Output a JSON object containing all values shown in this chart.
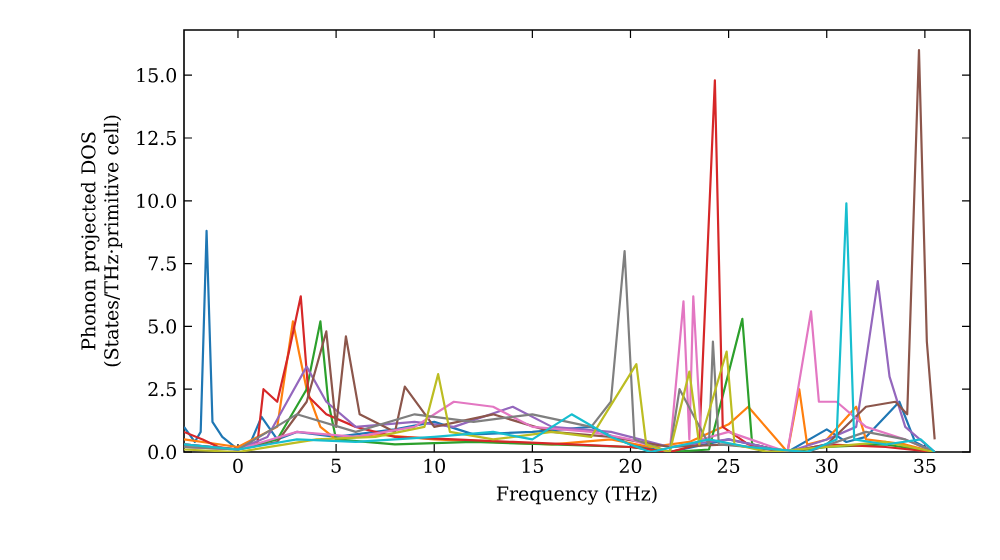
{
  "chart_data": {
    "type": "line",
    "xlabel": "Frequency (THz)",
    "ylabel": "Phonon projected DOS (States/THz·primitive cell)",
    "xlim": [
      -2.75,
      37.3
    ],
    "ylim": [
      0,
      16.8
    ],
    "xticks": [
      0,
      5,
      10,
      15,
      20,
      25,
      30,
      35
    ],
    "yticks": [
      {
        "value": 0,
        "label": "0.0"
      },
      {
        "value": 2.5,
        "label": "2.5"
      },
      {
        "value": 5,
        "label": "5.0"
      },
      {
        "value": 7.5,
        "label": "7.5"
      },
      {
        "value": 10,
        "label": "10.0"
      },
      {
        "value": 12.5,
        "label": "12.5"
      },
      {
        "value": 15,
        "label": "15.0"
      }
    ],
    "grid": false,
    "marker": "none",
    "line_style": "solid",
    "series": [
      {
        "color": "#1f77b4",
        "x": [
          -2.75,
          -2.2,
          -1.9,
          -1.6,
          -1.3,
          -0.8,
          0,
          0.6,
          1.2,
          2,
          3,
          5,
          8,
          10,
          12,
          15,
          18,
          20,
          22,
          25,
          28,
          30,
          31,
          32,
          33.7,
          34.5,
          35.5
        ],
        "values": [
          1.0,
          0.4,
          0.8,
          8.8,
          1.2,
          0.6,
          0.1,
          0.3,
          1.4,
          0.5,
          0.8,
          0.6,
          0.9,
          1.2,
          0.7,
          0.8,
          1.0,
          0.3,
          0.0,
          0.5,
          0.0,
          0.9,
          0.4,
          0.6,
          2.0,
          0.4,
          0.0
        ]
      },
      {
        "color": "#ff7f0e",
        "x": [
          -2.75,
          0,
          2,
          2.8,
          3.1,
          3.5,
          4.2,
          5,
          7,
          10,
          13,
          16,
          19,
          21,
          23,
          25,
          26,
          28,
          28.6,
          29,
          30,
          31.5,
          32,
          34,
          35.5
        ],
        "values": [
          0.5,
          0.2,
          1.0,
          5.2,
          4.0,
          2.5,
          1.0,
          0.5,
          0.7,
          0.5,
          0.4,
          0.3,
          0.5,
          0.2,
          0.4,
          1.1,
          1.8,
          0.0,
          2.5,
          0.3,
          0.5,
          1.8,
          0.5,
          0.3,
          0.0
        ]
      },
      {
        "color": "#2ca02c",
        "x": [
          -2.75,
          0,
          2,
          3.5,
          4.2,
          4.6,
          5,
          8,
          12,
          16,
          20,
          22,
          24,
          25.7,
          26.2,
          28,
          30,
          33,
          35.5
        ],
        "values": [
          0.2,
          0.1,
          0.5,
          2.5,
          5.2,
          2.0,
          0.5,
          0.3,
          0.4,
          0.3,
          0.2,
          0.0,
          0.1,
          5.3,
          0.3,
          0.0,
          0.2,
          0.3,
          0.0
        ]
      },
      {
        "color": "#d62728",
        "x": [
          -2.75,
          -1.8,
          -1,
          0,
          1,
          1.3,
          2,
          2.6,
          3.2,
          3.6,
          4.5,
          6,
          8,
          11,
          14,
          17,
          20,
          22,
          23.5,
          24.3,
          24.7,
          26,
          28,
          30,
          33,
          35.5
        ],
        "values": [
          0.8,
          0.5,
          0.2,
          0.1,
          0.4,
          2.5,
          2.0,
          4.0,
          6.2,
          2.2,
          1.5,
          1.0,
          0.6,
          0.5,
          0.4,
          0.3,
          0.2,
          0.0,
          0.3,
          14.8,
          1.0,
          0.3,
          0.0,
          0.3,
          0.2,
          0.0
        ]
      },
      {
        "color": "#9467bd",
        "x": [
          -2.75,
          0,
          1.5,
          2.5,
          3.5,
          4.5,
          6,
          9,
          11,
          14,
          16,
          19,
          22,
          25,
          28,
          30,
          31.5,
          32.6,
          33.2,
          34,
          35.5
        ],
        "values": [
          0.3,
          0.1,
          0.6,
          2.0,
          3.4,
          2.0,
          1.0,
          1.2,
          1.0,
          1.8,
          1.0,
          0.8,
          0.2,
          0.5,
          0.0,
          0.5,
          1.0,
          6.8,
          3.0,
          1.0,
          0.0
        ]
      },
      {
        "color": "#8c564b",
        "x": [
          -2.75,
          0,
          2,
          3.5,
          4.5,
          5,
          5.5,
          6.2,
          8,
          8.5,
          10,
          13,
          16,
          19,
          22,
          25,
          28,
          30,
          32,
          33.5,
          34.1,
          34.7,
          35.1,
          35.5
        ],
        "values": [
          0.3,
          0.1,
          0.4,
          2.0,
          4.8,
          1.0,
          4.6,
          1.5,
          0.8,
          2.6,
          1.0,
          1.5,
          0.8,
          0.6,
          0.2,
          0.3,
          0.0,
          0.3,
          1.8,
          2.0,
          1.5,
          16.0,
          4.4,
          0.5
        ]
      },
      {
        "color": "#e377c2",
        "x": [
          -2.75,
          0,
          3,
          6,
          9,
          11,
          13,
          15,
          18,
          20,
          22,
          22.7,
          23,
          23.2,
          23.6,
          25,
          28,
          29.2,
          29.6,
          30.5,
          32,
          34,
          35.5
        ],
        "values": [
          0.2,
          0.1,
          0.8,
          0.6,
          1.0,
          2.0,
          1.8,
          1.0,
          0.8,
          0.5,
          0.0,
          6.0,
          0.5,
          6.2,
          0.5,
          0.8,
          0.0,
          5.6,
          2.0,
          2.0,
          1.0,
          0.5,
          0.0
        ]
      },
      {
        "color": "#7f7f7f",
        "x": [
          -2.75,
          0,
          3,
          6,
          9,
          12,
          15,
          18,
          19,
          19.7,
          20.2,
          22,
          22.5,
          24,
          24.2,
          24.5,
          26,
          29,
          32,
          34,
          35.5
        ],
        "values": [
          0.2,
          0.1,
          1.5,
          0.8,
          1.5,
          1.2,
          1.5,
          1.0,
          2.0,
          8.0,
          0.5,
          0.0,
          2.5,
          0.3,
          4.4,
          0.3,
          0.2,
          0.0,
          0.8,
          0.5,
          0.0
        ]
      },
      {
        "color": "#bcbd22",
        "x": [
          -2.75,
          0,
          4,
          7,
          9.5,
          10.2,
          10.8,
          13,
          16,
          18,
          20.3,
          20.8,
          22,
          23,
          23.5,
          24.9,
          25.3,
          27,
          30,
          33,
          35.5
        ],
        "values": [
          0.1,
          0.0,
          0.5,
          0.6,
          1.0,
          3.1,
          0.8,
          0.5,
          0.8,
          0.6,
          3.5,
          0.3,
          0.0,
          3.2,
          0.3,
          4.0,
          0.3,
          0.0,
          0.2,
          0.4,
          0.0
        ]
      },
      {
        "color": "#17becf",
        "x": [
          -2.75,
          0,
          3,
          6,
          10,
          13,
          15,
          17,
          19,
          21,
          24,
          26,
          29,
          30.5,
          31,
          31.4,
          33,
          34.8,
          35.5
        ],
        "values": [
          0.3,
          0.1,
          0.5,
          0.4,
          0.6,
          0.8,
          0.5,
          1.5,
          0.6,
          0.0,
          0.5,
          0.2,
          0.0,
          0.5,
          9.9,
          0.5,
          0.3,
          0.5,
          0.0
        ]
      }
    ]
  }
}
